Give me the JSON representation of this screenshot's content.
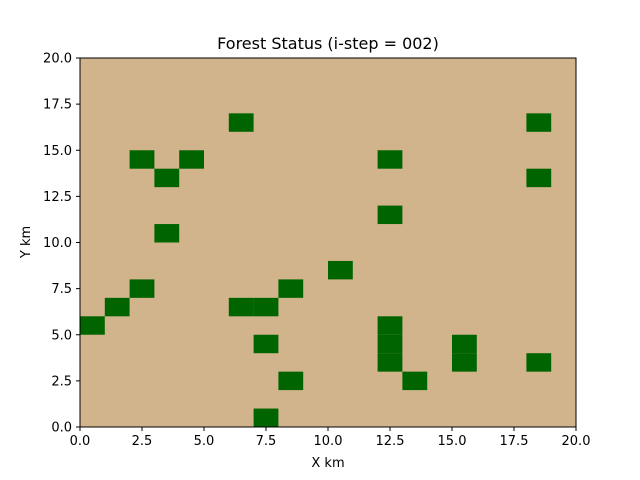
{
  "chart_data": {
    "type": "heatmap",
    "title": "Forest Status (i-step = 002)",
    "xlabel": "X km",
    "ylabel": "Y km",
    "xlim": [
      0,
      20
    ],
    "ylim": [
      0,
      20
    ],
    "xticks": [
      "0.0",
      "2.5",
      "5.0",
      "7.5",
      "10.0",
      "12.5",
      "15.0",
      "17.5",
      "20.0"
    ],
    "yticks": [
      "0.0",
      "2.5",
      "5.0",
      "7.5",
      "10.0",
      "12.5",
      "15.0",
      "17.5",
      "20.0"
    ],
    "cell_size_km": 1,
    "grid": false,
    "colors": {
      "empty": "#d2b48c",
      "tree": "#006400"
    },
    "tree_cells": [
      {
        "x": 6,
        "y": 16
      },
      {
        "x": 18,
        "y": 16
      },
      {
        "x": 2,
        "y": 14
      },
      {
        "x": 4,
        "y": 14
      },
      {
        "x": 12,
        "y": 14
      },
      {
        "x": 3,
        "y": 13
      },
      {
        "x": 18,
        "y": 13
      },
      {
        "x": 12,
        "y": 11
      },
      {
        "x": 3,
        "y": 10
      },
      {
        "x": 10,
        "y": 8
      },
      {
        "x": 2,
        "y": 7
      },
      {
        "x": 8,
        "y": 7
      },
      {
        "x": 1,
        "y": 6
      },
      {
        "x": 6,
        "y": 6
      },
      {
        "x": 7,
        "y": 6
      },
      {
        "x": 0,
        "y": 5
      },
      {
        "x": 12,
        "y": 5
      },
      {
        "x": 7,
        "y": 4
      },
      {
        "x": 12,
        "y": 4
      },
      {
        "x": 15,
        "y": 4
      },
      {
        "x": 12,
        "y": 3
      },
      {
        "x": 15,
        "y": 3
      },
      {
        "x": 18,
        "y": 3
      },
      {
        "x": 8,
        "y": 2
      },
      {
        "x": 13,
        "y": 2
      },
      {
        "x": 7,
        "y": 0
      }
    ]
  }
}
